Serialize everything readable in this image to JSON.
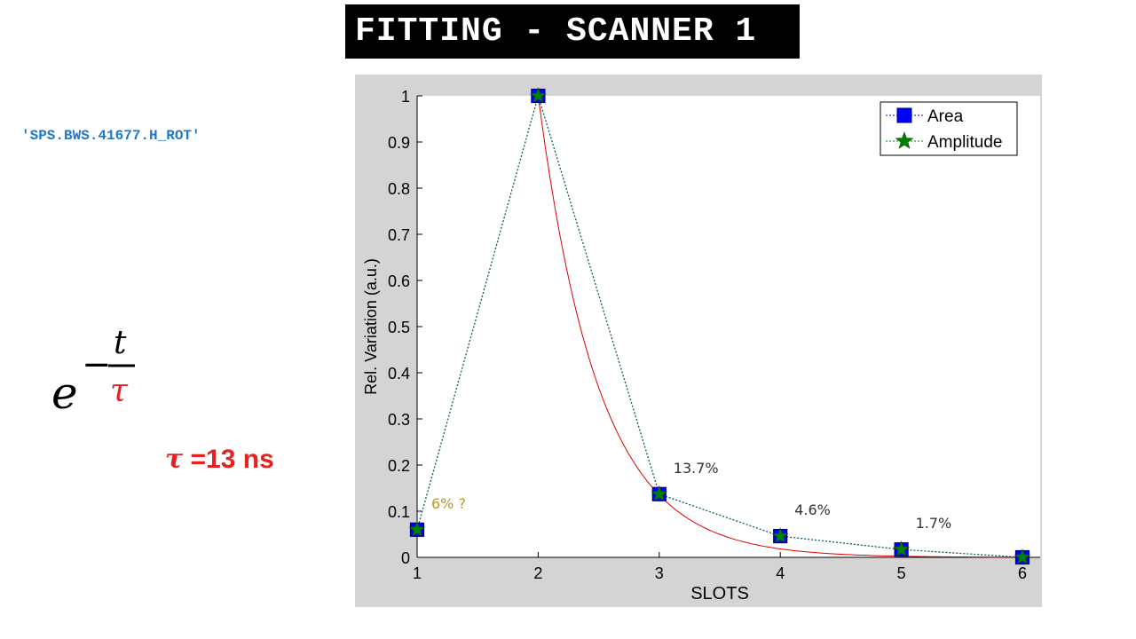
{
  "header": {
    "title": "FITTING - SCANNER 1"
  },
  "device": {
    "id": "'SPS.BWS.41677.H_ROT'"
  },
  "formula": {
    "base": "e",
    "minus": "−",
    "numerator": "t",
    "denominator": "τ"
  },
  "tau": {
    "symbol": "τ",
    "value_text": " =13 ns"
  },
  "colors": {
    "tau": "#e82020",
    "area": "#0000ff",
    "amplitude": "#008000",
    "fit": "#dd0000",
    "device_id": "#1f78c8",
    "annotation_gold": "#b8962e"
  },
  "chart_data": {
    "type": "line",
    "xlabel": "SLOTS",
    "ylabel": "Rel. Variation (a.u.)",
    "xlim": [
      1,
      6
    ],
    "ylim": [
      0,
      1
    ],
    "xticks": [
      "1",
      "2",
      "3",
      "4",
      "5",
      "6"
    ],
    "yticks": [
      "0",
      "0.1",
      "0.2",
      "0.3",
      "0.4",
      "0.5",
      "0.6",
      "0.7",
      "0.8",
      "0.9",
      "1"
    ],
    "legend_position": "top-right",
    "x": [
      1,
      2,
      3,
      4,
      5,
      6
    ],
    "series": [
      {
        "name": "Area",
        "marker": "square",
        "color": "#0000ff",
        "style": "dotted",
        "values": [
          0.06,
          1.0,
          0.137,
          0.046,
          0.017,
          0.0
        ]
      },
      {
        "name": "Amplitude",
        "marker": "star",
        "color": "#008000",
        "style": "dotted",
        "values": [
          0.06,
          1.0,
          0.137,
          0.046,
          0.017,
          0.0
        ]
      }
    ],
    "fit": {
      "color": "#dd0000",
      "tau_slots": 0.5,
      "start_x": 2,
      "amplitude": 1.0
    },
    "annotations": [
      {
        "text": "6% ?",
        "x": 1.0,
        "y": 0.06,
        "color": "#b8962e"
      },
      {
        "text": "13.7%",
        "x": 3.0,
        "y": 0.137,
        "color": "#333333"
      },
      {
        "text": "4.6%",
        "x": 4.0,
        "y": 0.046,
        "color": "#333333"
      },
      {
        "text": "1.7%",
        "x": 5.0,
        "y": 0.017,
        "color": "#333333"
      }
    ]
  }
}
